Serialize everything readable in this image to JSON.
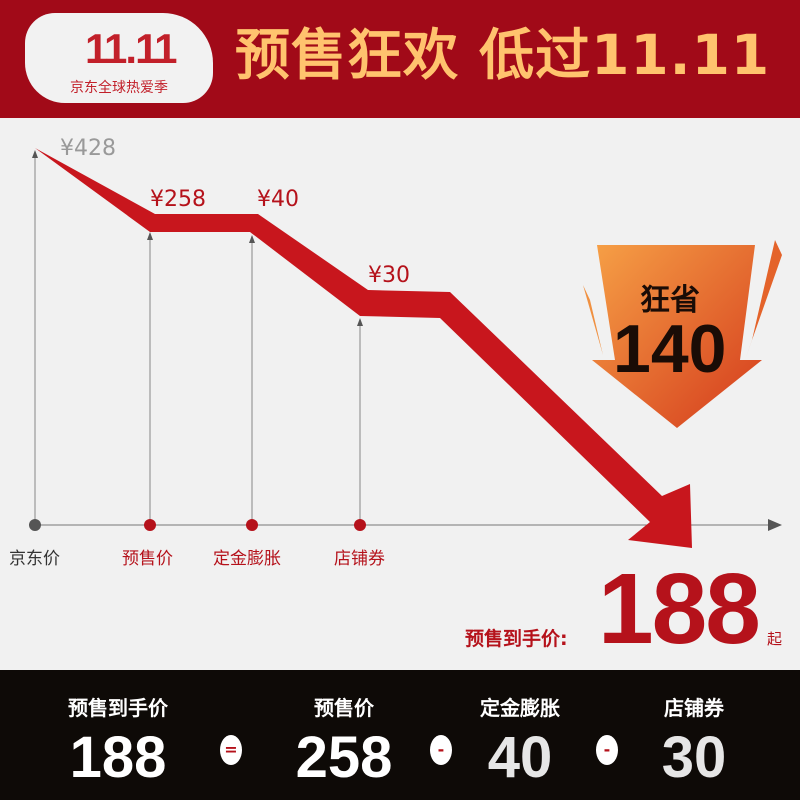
{
  "header": {
    "logo_mark": "11.11",
    "logo_sub": "京东全球热爱季",
    "title": "预售狂欢 低过11.11"
  },
  "chart": {
    "price_labels": [
      "¥428",
      "¥258",
      "¥40",
      "¥30"
    ],
    "axis_labels": [
      "京东价",
      "预售价",
      "定金膨胀",
      "店铺券"
    ],
    "colors": {
      "original": "#999999",
      "accent": "#b5121b"
    }
  },
  "savings": {
    "label": "狂省",
    "amount": "140"
  },
  "final": {
    "label": "预售到手价:",
    "price": "188",
    "suffix": "起"
  },
  "formula": {
    "items": [
      {
        "label": "预售到手价",
        "value": "188"
      },
      {
        "label": "预售价",
        "value": "258"
      },
      {
        "label": "定金膨胀",
        "value": "40"
      },
      {
        "label": "店铺券",
        "value": "30"
      }
    ],
    "operators": [
      "=",
      "-",
      "-"
    ]
  }
}
